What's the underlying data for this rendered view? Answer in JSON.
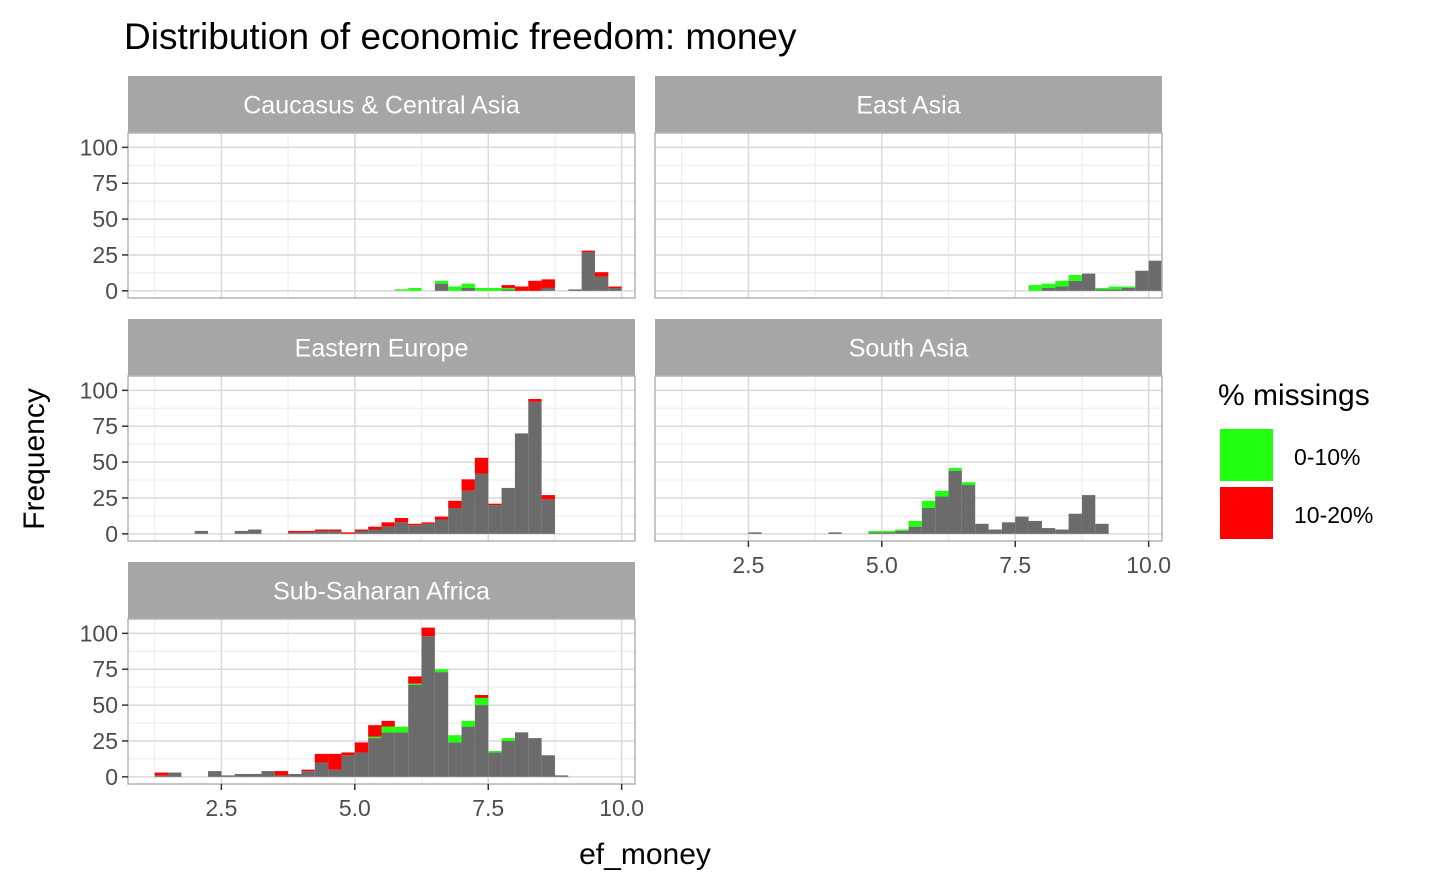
{
  "chart_data": {
    "type": "histogram",
    "title": "Distribution of economic freedom: money",
    "xlabel": "ef_money",
    "ylabel": "Frequency",
    "xlim": [
      0.75,
      10.25
    ],
    "ylim": [
      -5,
      110
    ],
    "x_ticks": [
      "2.5",
      "5.0",
      "7.5",
      "10.0"
    ],
    "x_tick_values": [
      2.5,
      5.0,
      7.5,
      10.0
    ],
    "y_ticks": [
      "0",
      "25",
      "50",
      "75",
      "100"
    ],
    "y_tick_values": [
      0,
      25,
      50,
      75,
      100
    ],
    "bin_width": 0.25,
    "bin_start": 1.0,
    "stack_order": [
      "10-20%",
      "0-10%",
      "base"
    ],
    "base_color": "#6b6b6b",
    "grid": true,
    "legend": {
      "title": "% missings",
      "position": "right",
      "items": [
        {
          "label": "0-10%",
          "color": "#22ff11"
        },
        {
          "label": "10-20%",
          "color": "#ff0000"
        }
      ]
    },
    "panels": [
      {
        "name": "Caucasus & Central Asia",
        "base": [
          0,
          0,
          0,
          0,
          0,
          0,
          0,
          0,
          0,
          0,
          0,
          0,
          0,
          0,
          0,
          0,
          0,
          0,
          0,
          0,
          0,
          0,
          5,
          0,
          2,
          0,
          0,
          1,
          0,
          0,
          2,
          0,
          1,
          27,
          10,
          2,
          0
        ],
        "g010": [
          0,
          0,
          0,
          0,
          0,
          0,
          0,
          0,
          0,
          0,
          0,
          0,
          0,
          0,
          0,
          0,
          0,
          0,
          0,
          1,
          2,
          0,
          2,
          3,
          3,
          2,
          2,
          1,
          0,
          0,
          0,
          0,
          0,
          0,
          0,
          0,
          0
        ],
        "r1020": [
          0,
          0,
          0,
          0,
          0,
          0,
          0,
          0,
          0,
          0,
          0,
          0,
          0,
          0,
          0,
          0,
          0,
          0,
          0,
          0,
          0,
          0,
          0,
          0,
          0,
          0,
          0,
          2,
          3,
          7,
          6,
          0,
          0,
          1,
          3,
          1,
          0
        ]
      },
      {
        "name": "East Asia",
        "base": [
          0,
          0,
          0,
          0,
          0,
          0,
          0,
          0,
          0,
          0,
          0,
          0,
          0,
          0,
          0,
          0,
          0,
          0,
          0,
          0,
          0,
          0,
          0,
          0,
          0,
          0,
          0,
          0,
          2,
          3,
          7,
          12,
          1,
          1,
          2,
          14,
          21,
          0
        ],
        "g010": [
          0,
          0,
          0,
          0,
          0,
          0,
          0,
          0,
          0,
          0,
          0,
          0,
          0,
          0,
          0,
          0,
          0,
          0,
          0,
          0,
          0,
          0,
          0,
          0,
          0,
          0,
          0,
          4,
          3,
          4,
          4,
          0,
          1,
          2,
          1,
          0,
          0,
          0
        ],
        "r1020": [
          0,
          0,
          0,
          0,
          0,
          0,
          0,
          0,
          0,
          0,
          0,
          0,
          0,
          0,
          0,
          0,
          0,
          0,
          0,
          0,
          0,
          0,
          0,
          0,
          0,
          0,
          0,
          0,
          0,
          0,
          0,
          0,
          0,
          0,
          0,
          0,
          0,
          0
        ]
      },
      {
        "name": "Eastern Europe",
        "base": [
          0,
          0,
          0,
          0,
          2,
          0,
          0,
          2,
          3,
          0,
          0,
          1,
          1,
          2,
          2,
          0,
          2,
          3,
          5,
          8,
          6,
          7,
          10,
          18,
          30,
          42,
          20,
          32,
          70,
          92,
          24,
          0
        ],
        "g010": [
          0,
          0,
          0,
          0,
          0,
          0,
          0,
          0,
          0,
          0,
          0,
          0,
          0,
          0,
          0,
          0,
          0,
          0,
          0,
          0,
          0,
          0,
          0,
          0,
          0,
          0,
          0,
          0,
          0,
          0,
          0,
          0
        ],
        "r1020": [
          0,
          0,
          0,
          0,
          0,
          0,
          0,
          0,
          0,
          0,
          0,
          1,
          1,
          1,
          1,
          1,
          1,
          2,
          3,
          3,
          1,
          1,
          2,
          5,
          8,
          11,
          1,
          0,
          0,
          2,
          3,
          0
        ]
      },
      {
        "name": "South Asia",
        "base": [
          0,
          0,
          0,
          0,
          0,
          0,
          1,
          0,
          0,
          0,
          0,
          0,
          1,
          0,
          0,
          1,
          1,
          2,
          5,
          18,
          26,
          44,
          34,
          7,
          3,
          8,
          12,
          9,
          4,
          3,
          14,
          27,
          7
        ],
        "g010": [
          0,
          0,
          0,
          0,
          0,
          0,
          0,
          0,
          0,
          0,
          0,
          0,
          0,
          0,
          0,
          1,
          1,
          1,
          4,
          5,
          4,
          2,
          2,
          0,
          0,
          0,
          0,
          0,
          0,
          0,
          0,
          0,
          0
        ],
        "r1020": [
          0,
          0,
          0,
          0,
          0,
          0,
          0,
          0,
          0,
          0,
          0,
          0,
          0,
          0,
          0,
          0,
          0,
          0,
          0,
          0,
          0,
          0,
          0,
          0,
          0,
          0,
          0,
          0,
          0,
          0,
          0,
          0,
          0
        ]
      },
      {
        "name": "Sub-Saharan Africa",
        "base": [
          0,
          1,
          3,
          0,
          0,
          4,
          1,
          2,
          2,
          4,
          1,
          2,
          4,
          10,
          5,
          15,
          17,
          27,
          31,
          31,
          64,
          98,
          73,
          24,
          35,
          50,
          17,
          25,
          31,
          27,
          15,
          1
        ],
        "g010": [
          0,
          0,
          0,
          0,
          0,
          0,
          0,
          0,
          0,
          0,
          0,
          0,
          0,
          0,
          0,
          0,
          0,
          1,
          4,
          4,
          1,
          0,
          2,
          5,
          4,
          5,
          1,
          2,
          0,
          0,
          0,
          0
        ],
        "r1020": [
          0,
          2,
          0,
          0,
          0,
          0,
          0,
          0,
          0,
          0,
          3,
          0,
          1,
          6,
          11,
          2,
          7,
          8,
          4,
          0,
          5,
          6,
          0,
          0,
          0,
          2,
          0,
          0,
          0,
          0,
          0,
          0
        ]
      }
    ]
  }
}
